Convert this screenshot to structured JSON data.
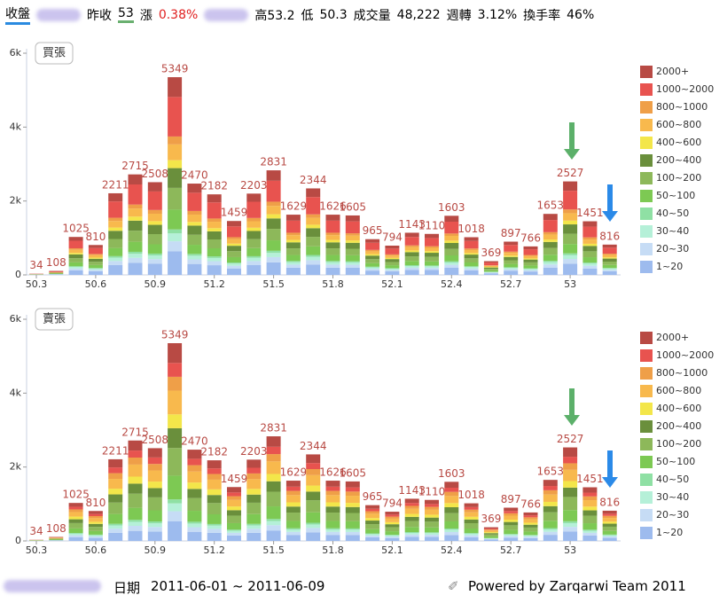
{
  "header": {
    "items": [
      "收盤",
      "昨收",
      "53",
      "漲",
      "0.38%",
      "高",
      "53.2",
      "低",
      "50.3",
      "成交量",
      "48,222",
      "週轉",
      "3.12%",
      "換手率",
      "46%"
    ]
  },
  "footer": {
    "date_label": "日期",
    "date_range": "2011-06-01 ~ 2011-06-09",
    "credit": "Powered by Zarqarwi Team 2011"
  },
  "chart_data": [
    {
      "type": "bar",
      "stacked": true,
      "title": "買張",
      "categories": [
        "50.3",
        null,
        null,
        "50.6",
        null,
        null,
        "50.9",
        null,
        null,
        "51.2",
        null,
        null,
        "51.5",
        null,
        null,
        "51.8",
        null,
        null,
        "52.1",
        null,
        null,
        "52.4",
        null,
        null,
        "52.7",
        null,
        null,
        "53",
        null,
        null
      ],
      "totals": [
        34,
        108,
        1025,
        810,
        2211,
        2715,
        2508,
        5349,
        2470,
        2182,
        1459,
        2203,
        2831,
        1629,
        2344,
        1626,
        1605,
        965,
        794,
        1143,
        1110,
        1603,
        1018,
        369,
        897,
        766,
        1653,
        2527,
        1451,
        816
      ],
      "ylim": [
        0,
        6000
      ],
      "yticks": [
        0,
        {
          "value": 2000,
          "label": "2k"
        },
        {
          "value": 4000,
          "label": "4k"
        },
        {
          "value": 6000,
          "label": "6k"
        }
      ],
      "grid": false,
      "series": [
        {
          "name": "1~20",
          "color": "#9dbbee",
          "values": [
            4,
            13,
            123,
            97,
            265,
            326,
            301,
            642,
            296,
            262,
            175,
            264,
            340,
            196,
            281,
            196,
            193,
            116,
            95,
            137,
            133,
            192,
            122,
            44,
            108,
            92,
            198,
            304,
            174,
            98
          ]
        },
        {
          "name": "20~30",
          "color": "#c6dcf5",
          "values": [
            2,
            5,
            51,
            41,
            111,
            136,
            126,
            268,
            124,
            109,
            73,
            110,
            142,
            82,
            117,
            82,
            81,
            48,
            40,
            57,
            56,
            80,
            51,
            19,
            45,
            39,
            83,
            127,
            73,
            41
          ]
        },
        {
          "name": "30~40",
          "color": "#b5f0d8",
          "values": [
            1,
            4,
            41,
            32,
            88,
            109,
            100,
            214,
            99,
            87,
            58,
            88,
            113,
            65,
            94,
            65,
            64,
            39,
            32,
            46,
            44,
            64,
            41,
            15,
            36,
            31,
            66,
            101,
            58,
            33
          ]
        },
        {
          "name": "40~50",
          "color": "#8fe0a4",
          "values": [
            1,
            2,
            21,
            16,
            44,
            54,
            50,
            107,
            49,
            44,
            29,
            44,
            57,
            33,
            47,
            33,
            32,
            19,
            16,
            23,
            22,
            32,
            20,
            7,
            18,
            15,
            33,
            51,
            29,
            16
          ]
        },
        {
          "name": "50~100",
          "color": "#7dc953",
          "values": [
            3,
            11,
            103,
            81,
            221,
            272,
            251,
            535,
            247,
            218,
            146,
            220,
            283,
            163,
            234,
            163,
            161,
            97,
            79,
            114,
            111,
            160,
            102,
            37,
            90,
            77,
            165,
            253,
            145,
            82
          ]
        },
        {
          "name": "100~200",
          "color": "#8db85a",
          "values": [
            4,
            12,
            113,
            89,
            243,
            299,
            276,
            589,
            272,
            240,
            161,
            242,
            311,
            179,
            257,
            179,
            177,
            106,
            87,
            125,
            122,
            176,
            112,
            41,
            99,
            85,
            182,
            278,
            160,
            90
          ]
        },
        {
          "name": "200~400",
          "color": "#6a8f3c",
          "values": [
            3,
            11,
            103,
            81,
            221,
            272,
            251,
            535,
            247,
            218,
            146,
            220,
            283,
            163,
            234,
            163,
            161,
            97,
            79,
            114,
            111,
            160,
            102,
            37,
            90,
            77,
            165,
            253,
            145,
            82
          ]
        },
        {
          "name": "400~600",
          "color": "#f3e64a",
          "values": [
            1,
            4,
            41,
            32,
            88,
            109,
            100,
            214,
            99,
            87,
            58,
            88,
            113,
            65,
            94,
            65,
            64,
            39,
            32,
            46,
            44,
            64,
            41,
            15,
            36,
            31,
            66,
            101,
            58,
            33
          ]
        },
        {
          "name": "600~800",
          "color": "#f8b94d",
          "values": [
            3,
            9,
            82,
            65,
            177,
            218,
            201,
            428,
            198,
            174,
            117,
            176,
            226,
            130,
            187,
            130,
            129,
            77,
            63,
            91,
            89,
            128,
            82,
            30,
            72,
            62,
            132,
            202,
            116,
            66
          ]
        },
        {
          "name": "800~1000",
          "color": "#ef9f48",
          "values": [
            1,
            4,
            41,
            32,
            88,
            109,
            100,
            214,
            99,
            87,
            58,
            88,
            113,
            65,
            94,
            65,
            64,
            39,
            32,
            46,
            44,
            64,
            41,
            15,
            36,
            31,
            66,
            101,
            58,
            33
          ]
        },
        {
          "name": "1000~2000",
          "color": "#e8534f",
          "values": [
            7,
            22,
            205,
            162,
            442,
            544,
            502,
            1070,
            494,
            436,
            292,
            440,
            566,
            326,
            468,
            326,
            322,
            193,
            158,
            228,
            222,
            320,
            204,
            74,
            180,
            154,
            330,
            506,
            290,
            164
          ]
        },
        {
          "name": "2000+",
          "color": "#b84a44",
          "values": [
            3,
            11,
            103,
            81,
            221,
            272,
            251,
            535,
            247,
            218,
            146,
            220,
            283,
            163,
            234,
            163,
            161,
            97,
            79,
            114,
            111,
            160,
            102,
            37,
            90,
            77,
            165,
            253,
            145,
            82
          ]
        }
      ]
    },
    {
      "type": "bar",
      "stacked": true,
      "title": "賣張",
      "categories": [
        "50.3",
        null,
        null,
        "50.6",
        null,
        null,
        "50.9",
        null,
        null,
        "51.2",
        null,
        null,
        "51.5",
        null,
        null,
        "51.8",
        null,
        null,
        "52.1",
        null,
        null,
        "52.4",
        null,
        null,
        "52.7",
        null,
        null,
        "53",
        null,
        null
      ],
      "totals": [
        34,
        108,
        1025,
        810,
        2211,
        2715,
        2508,
        5349,
        2470,
        2182,
        1459,
        2203,
        2831,
        1629,
        2344,
        1626,
        1605,
        965,
        794,
        1143,
        1110,
        1603,
        1018,
        369,
        897,
        766,
        1653,
        2527,
        1451,
        816
      ],
      "ylim": [
        0,
        6000
      ],
      "yticks": [
        0,
        {
          "value": 2000,
          "label": "2k"
        },
        {
          "value": 4000,
          "label": "4k"
        },
        {
          "value": 6000,
          "label": "6k"
        }
      ],
      "grid": false,
      "series": [
        {
          "name": "1~20",
          "color": "#9dbbee",
          "values": [
            3,
            11,
            103,
            81,
            221,
            272,
            251,
            535,
            247,
            218,
            146,
            220,
            283,
            163,
            234,
            163,
            161,
            97,
            79,
            114,
            111,
            160,
            102,
            37,
            90,
            77,
            165,
            253,
            145,
            82
          ]
        },
        {
          "name": "20~30",
          "color": "#c6dcf5",
          "values": [
            2,
            5,
            51,
            41,
            111,
            136,
            126,
            268,
            124,
            109,
            73,
            110,
            142,
            82,
            117,
            82,
            81,
            48,
            40,
            57,
            56,
            80,
            51,
            19,
            45,
            39,
            83,
            127,
            73,
            41
          ]
        },
        {
          "name": "30~40",
          "color": "#b5f0d8",
          "values": [
            1,
            4,
            41,
            32,
            88,
            109,
            100,
            214,
            99,
            87,
            58,
            88,
            113,
            65,
            94,
            65,
            64,
            39,
            32,
            46,
            44,
            64,
            41,
            15,
            36,
            31,
            66,
            101,
            58,
            33
          ]
        },
        {
          "name": "40~50",
          "color": "#8fe0a4",
          "values": [
            1,
            2,
            21,
            16,
            44,
            54,
            50,
            107,
            49,
            44,
            29,
            44,
            57,
            33,
            47,
            33,
            32,
            19,
            16,
            23,
            22,
            32,
            20,
            7,
            18,
            15,
            33,
            51,
            29,
            16
          ]
        },
        {
          "name": "50~100",
          "color": "#7dc953",
          "values": [
            4,
            13,
            123,
            97,
            265,
            326,
            301,
            642,
            296,
            262,
            175,
            264,
            340,
            196,
            281,
            196,
            193,
            116,
            95,
            137,
            133,
            192,
            122,
            44,
            108,
            92,
            198,
            304,
            174,
            98
          ]
        },
        {
          "name": "100~200",
          "color": "#8db85a",
          "values": [
            5,
            15,
            144,
            113,
            309,
            381,
            351,
            749,
            346,
            305,
            204,
            308,
            396,
            228,
            328,
            228,
            225,
            135,
            111,
            160,
            155,
            224,
            143,
            52,
            126,
            108,
            231,
            354,
            203,
            115
          ]
        },
        {
          "name": "200~400",
          "color": "#6a8f3c",
          "values": [
            3,
            11,
            103,
            81,
            221,
            272,
            251,
            535,
            247,
            218,
            146,
            220,
            283,
            163,
            234,
            163,
            161,
            97,
            79,
            114,
            111,
            160,
            102,
            37,
            90,
            77,
            165,
            253,
            145,
            82
          ]
        },
        {
          "name": "400~600",
          "color": "#f3e64a",
          "values": [
            2,
            8,
            72,
            57,
            155,
            190,
            176,
            375,
            173,
            153,
            102,
            154,
            198,
            114,
            164,
            114,
            113,
            68,
            55,
            80,
            78,
            112,
            71,
            26,
            63,
            54,
            116,
            177,
            102,
            57
          ]
        },
        {
          "name": "600~800",
          "color": "#f8b94d",
          "values": [
            4,
            13,
            123,
            97,
            265,
            326,
            301,
            642,
            296,
            262,
            175,
            264,
            340,
            196,
            281,
            196,
            193,
            116,
            95,
            137,
            133,
            192,
            122,
            44,
            108,
            92,
            198,
            304,
            174,
            98
          ]
        },
        {
          "name": "800~1000",
          "color": "#ef9f48",
          "values": [
            2,
            8,
            72,
            57,
            155,
            190,
            176,
            375,
            173,
            153,
            102,
            154,
            198,
            114,
            164,
            114,
            113,
            68,
            55,
            80,
            78,
            112,
            71,
            26,
            63,
            54,
            116,
            177,
            102,
            57
          ]
        },
        {
          "name": "1000~2000",
          "color": "#e8534f",
          "values": [
            2,
            8,
            72,
            57,
            155,
            190,
            176,
            375,
            173,
            153,
            102,
            154,
            198,
            114,
            164,
            114,
            113,
            68,
            55,
            80,
            78,
            112,
            71,
            26,
            63,
            54,
            116,
            177,
            102,
            57
          ]
        },
        {
          "name": "2000+",
          "color": "#b84a44",
          "values": [
            3,
            11,
            103,
            81,
            221,
            272,
            251,
            535,
            247,
            218,
            146,
            220,
            283,
            163,
            234,
            163,
            161,
            97,
            79,
            114,
            111,
            160,
            102,
            37,
            90,
            77,
            165,
            253,
            145,
            82
          ]
        }
      ]
    }
  ]
}
